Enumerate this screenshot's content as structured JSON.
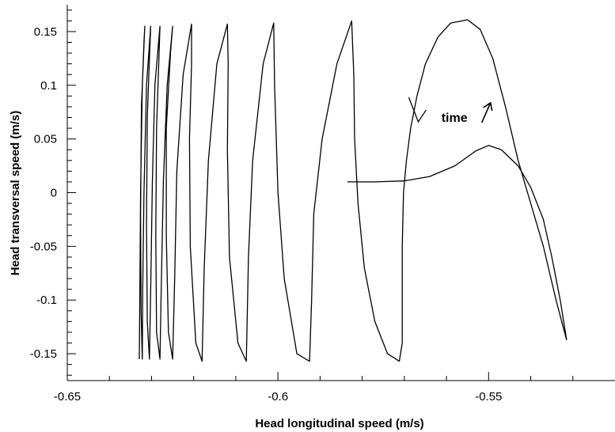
{
  "chart_data": {
    "type": "line",
    "title": "",
    "xlabel": "Head longitudinal speed (m/s)",
    "ylabel": "Head transversal speed (m/s)",
    "xlim": [
      -0.65,
      -0.52
    ],
    "ylim": [
      -0.175,
      0.175
    ],
    "x_ticks": [
      {
        "value": -0.65,
        "label": "-0.65"
      },
      {
        "value": -0.6,
        "label": "-0.6"
      },
      {
        "value": -0.55,
        "label": "-0.55"
      }
    ],
    "y_ticks": [
      {
        "value": 0.15,
        "label": "0.15"
      },
      {
        "value": 0.1,
        "label": "0.1"
      },
      {
        "value": 0.05,
        "label": "0.05"
      },
      {
        "value": 0,
        "label": "0"
      },
      {
        "value": -0.05,
        "label": "-0.05"
      },
      {
        "value": -0.1,
        "label": "-0.1"
      },
      {
        "value": -0.15,
        "label": "-0.15"
      }
    ],
    "grid": false,
    "annotations": [
      {
        "text": "time",
        "x": -0.5612,
        "y": 0.066
      }
    ],
    "series": [
      {
        "points": [
          [
            -0.5835,
            0.01
          ],
          [
            -0.577,
            0.01
          ],
          [
            -0.57,
            0.011
          ],
          [
            -0.564,
            0.015
          ],
          [
            -0.558,
            0.025
          ],
          [
            -0.553,
            0.039
          ],
          [
            -0.55,
            0.044
          ],
          [
            -0.547,
            0.04
          ],
          [
            -0.543,
            0.025
          ],
          [
            -0.54,
            0.005
          ],
          [
            -0.537,
            -0.025
          ],
          [
            -0.535,
            -0.06
          ],
          [
            -0.533,
            -0.1
          ],
          [
            -0.5315,
            -0.137
          ],
          [
            -0.534,
            -0.1
          ],
          [
            -0.537,
            -0.05
          ],
          [
            -0.54,
            -0.01
          ],
          [
            -0.543,
            0.03
          ],
          [
            -0.546,
            0.08
          ],
          [
            -0.549,
            0.125
          ],
          [
            -0.552,
            0.152
          ],
          [
            -0.555,
            0.161
          ],
          [
            -0.559,
            0.158
          ],
          [
            -0.562,
            0.145
          ],
          [
            -0.565,
            0.12
          ],
          [
            -0.567,
            0.09
          ],
          [
            -0.5685,
            0.06
          ],
          [
            -0.5695,
            0.03
          ],
          [
            -0.5702,
            0.0
          ],
          [
            -0.5705,
            -0.05
          ],
          [
            -0.5705,
            -0.1
          ],
          [
            -0.5705,
            -0.14
          ],
          [
            -0.5712,
            -0.157
          ],
          [
            -0.574,
            -0.15
          ],
          [
            -0.577,
            -0.12
          ],
          [
            -0.5795,
            -0.07
          ],
          [
            -0.581,
            -0.01
          ],
          [
            -0.5818,
            0.05
          ],
          [
            -0.582,
            0.11
          ],
          [
            -0.5825,
            0.16
          ],
          [
            -0.586,
            0.12
          ],
          [
            -0.5895,
            0.05
          ],
          [
            -0.5915,
            -0.02
          ],
          [
            -0.592,
            -0.1
          ],
          [
            -0.5925,
            -0.157
          ],
          [
            -0.5955,
            -0.15
          ],
          [
            -0.5985,
            -0.08
          ],
          [
            -0.6,
            0.0
          ],
          [
            -0.6008,
            0.1
          ],
          [
            -0.601,
            0.158
          ],
          [
            -0.6035,
            0.12
          ],
          [
            -0.606,
            0.03
          ],
          [
            -0.607,
            -0.06
          ],
          [
            -0.6075,
            -0.157
          ],
          [
            -0.6095,
            -0.14
          ],
          [
            -0.6115,
            -0.06
          ],
          [
            -0.612,
            0.04
          ],
          [
            -0.6118,
            0.12
          ],
          [
            -0.612,
            0.157
          ],
          [
            -0.6145,
            0.12
          ],
          [
            -0.6165,
            0.03
          ],
          [
            -0.6175,
            -0.07
          ],
          [
            -0.618,
            -0.157
          ],
          [
            -0.6195,
            -0.14
          ],
          [
            -0.6208,
            -0.05
          ],
          [
            -0.621,
            0.05
          ],
          [
            -0.6205,
            0.12
          ],
          [
            -0.6205,
            0.157
          ],
          [
            -0.6225,
            0.11
          ],
          [
            -0.624,
            0.02
          ],
          [
            -0.6245,
            -0.08
          ],
          [
            -0.625,
            -0.155
          ],
          [
            -0.626,
            -0.13
          ],
          [
            -0.6265,
            -0.04
          ],
          [
            -0.6265,
            0.06
          ],
          [
            -0.6255,
            0.13
          ],
          [
            -0.625,
            0.155
          ],
          [
            -0.6263,
            0.1
          ],
          [
            -0.6272,
            0.01
          ],
          [
            -0.6277,
            -0.09
          ],
          [
            -0.628,
            -0.155
          ],
          [
            -0.6288,
            -0.13
          ],
          [
            -0.629,
            -0.04
          ],
          [
            -0.6288,
            0.06
          ],
          [
            -0.6282,
            0.13
          ],
          [
            -0.628,
            0.155
          ],
          [
            -0.6292,
            0.1
          ],
          [
            -0.6298,
            0.01
          ],
          [
            -0.6302,
            -0.09
          ],
          [
            -0.6305,
            -0.155
          ],
          [
            -0.631,
            -0.12
          ],
          [
            -0.6312,
            -0.03
          ],
          [
            -0.631,
            0.07
          ],
          [
            -0.6304,
            0.135
          ],
          [
            -0.6302,
            0.155
          ],
          [
            -0.6312,
            0.1
          ],
          [
            -0.6318,
            0.0
          ],
          [
            -0.6321,
            -0.09
          ],
          [
            -0.6322,
            -0.155
          ],
          [
            -0.6325,
            -0.11
          ],
          [
            -0.6326,
            -0.02
          ],
          [
            -0.6324,
            0.08
          ],
          [
            -0.6318,
            0.14
          ],
          [
            -0.6316,
            0.155
          ],
          [
            -0.6322,
            0.1
          ],
          [
            -0.6326,
            0.0
          ],
          [
            -0.6328,
            -0.1
          ],
          [
            -0.6329,
            -0.155
          ]
        ]
      }
    ]
  }
}
